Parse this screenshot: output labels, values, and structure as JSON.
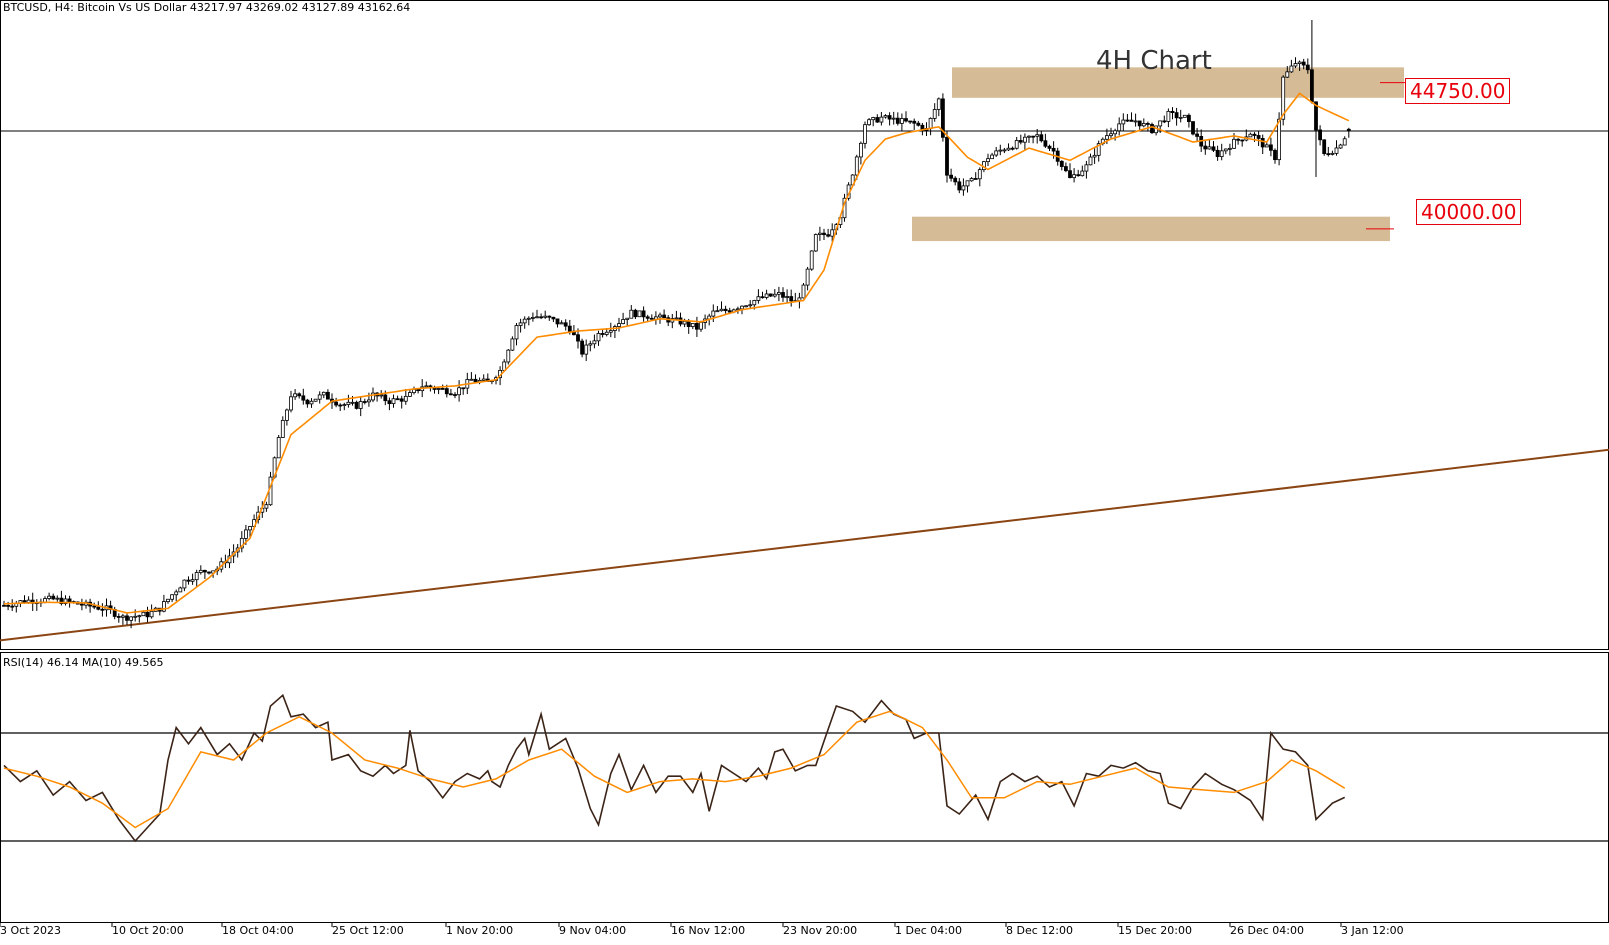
{
  "header": {
    "symbol_line": "BTCUSD, H4:  Bitcoin Vs US Dollar  43217.97 43269.02 43127.89 43162.64",
    "rsi_line": "RSI(14) 46.14 MA(10) 49.565"
  },
  "annotations": {
    "title": "4H Chart",
    "resistance_label": "44750.00",
    "support_label": "40000.00"
  },
  "colors": {
    "candle": "#000000",
    "ema": "#ff8c00",
    "trendline": "#8b4513",
    "zone": "#d2b48c",
    "level_label": "#e8000b",
    "rsi_line": "#3b2417",
    "rsi_ma": "#ff8c00"
  },
  "chart_data": [
    {
      "type": "candlestick",
      "symbol": "BTCUSD",
      "timeframe": "H4",
      "x_tick_labels": [
        "3 Oct 2023",
        "10 Oct 20:00",
        "18 Oct 04:00",
        "25 Oct 12:00",
        "1 Nov 20:00",
        "9 Nov 04:00",
        "16 Nov 12:00",
        "23 Nov 20:00",
        "1 Dec 04:00",
        "8 Dec 12:00",
        "15 Dec 20:00",
        "26 Dec 04:00",
        "3 Jan 12:00"
      ],
      "ylim": [
        26200,
        47000
      ],
      "current_price": 43162.64,
      "last_bar": {
        "open": 43217.97,
        "high": 43269.02,
        "low": 43127.89,
        "close": 43162.64
      },
      "price_path": [
        [
          0,
          27600
        ],
        [
          5,
          27750
        ],
        [
          12,
          27800
        ],
        [
          18,
          27650
        ],
        [
          25,
          27480
        ],
        [
          29,
          27200
        ],
        [
          35,
          27300
        ],
        [
          38,
          27500
        ],
        [
          44,
          28400
        ],
        [
          48,
          28700
        ],
        [
          52,
          28800
        ],
        [
          57,
          29500
        ],
        [
          60,
          30200
        ],
        [
          64,
          31000
        ],
        [
          67,
          33100
        ],
        [
          70,
          34500
        ],
        [
          74,
          34300
        ],
        [
          78,
          34500
        ],
        [
          82,
          34200
        ],
        [
          86,
          34150
        ],
        [
          90,
          34500
        ],
        [
          94,
          34300
        ],
        [
          98,
          34400
        ],
        [
          102,
          34800
        ],
        [
          106,
          34700
        ],
        [
          110,
          34600
        ],
        [
          114,
          35000
        ],
        [
          118,
          34900
        ],
        [
          121,
          35300
        ],
        [
          125,
          36800
        ],
        [
          129,
          37100
        ],
        [
          133,
          37000
        ],
        [
          138,
          36700
        ],
        [
          141,
          35900
        ],
        [
          145,
          36500
        ],
        [
          149,
          36800
        ],
        [
          153,
          37200
        ],
        [
          157,
          37100
        ],
        [
          161,
          37000
        ],
        [
          165,
          36900
        ],
        [
          169,
          36700
        ],
        [
          173,
          37200
        ],
        [
          177,
          37300
        ],
        [
          181,
          37500
        ],
        [
          185,
          37700
        ],
        [
          189,
          37800
        ],
        [
          193,
          37550
        ],
        [
          195,
          38000
        ],
        [
          198,
          39700
        ],
        [
          201,
          39800
        ],
        [
          204,
          40400
        ],
        [
          207,
          41800
        ],
        [
          210,
          43400
        ],
        [
          214,
          43600
        ],
        [
          218,
          43500
        ],
        [
          222,
          43400
        ],
        [
          225,
          43200
        ],
        [
          228,
          44200
        ],
        [
          230,
          41800
        ],
        [
          233,
          41300
        ],
        [
          236,
          41500
        ],
        [
          240,
          42300
        ],
        [
          244,
          42600
        ],
        [
          248,
          42800
        ],
        [
          252,
          43000
        ],
        [
          256,
          42500
        ],
        [
          260,
          41600
        ],
        [
          264,
          42000
        ],
        [
          268,
          42900
        ],
        [
          272,
          43400
        ],
        [
          276,
          43500
        ],
        [
          280,
          43200
        ],
        [
          284,
          43700
        ],
        [
          288,
          43600
        ],
        [
          292,
          42700
        ],
        [
          296,
          42400
        ],
        [
          300,
          42800
        ],
        [
          304,
          43100
        ],
        [
          308,
          42600
        ],
        [
          310,
          42300
        ],
        [
          312,
          44900
        ],
        [
          315,
          45400
        ],
        [
          318,
          45200
        ],
        [
          320,
          43200
        ],
        [
          322,
          42400
        ],
        [
          325,
          42600
        ],
        [
          328,
          43162
        ]
      ],
      "ema_path": [
        [
          0,
          27650
        ],
        [
          10,
          27700
        ],
        [
          20,
          27680
        ],
        [
          30,
          27350
        ],
        [
          40,
          27500
        ],
        [
          50,
          28500
        ],
        [
          60,
          29800
        ],
        [
          70,
          33200
        ],
        [
          80,
          34300
        ],
        [
          90,
          34500
        ],
        [
          100,
          34700
        ],
        [
          110,
          34800
        ],
        [
          120,
          35000
        ],
        [
          130,
          36400
        ],
        [
          140,
          36600
        ],
        [
          150,
          36700
        ],
        [
          160,
          37000
        ],
        [
          170,
          36900
        ],
        [
          180,
          37300
        ],
        [
          190,
          37500
        ],
        [
          195,
          37600
        ],
        [
          200,
          38600
        ],
        [
          205,
          40800
        ],
        [
          210,
          42200
        ],
        [
          215,
          42900
        ],
        [
          220,
          43100
        ],
        [
          228,
          43300
        ],
        [
          235,
          42300
        ],
        [
          240,
          41900
        ],
        [
          250,
          42600
        ],
        [
          260,
          42200
        ],
        [
          270,
          42900
        ],
        [
          280,
          43300
        ],
        [
          290,
          42800
        ],
        [
          300,
          43000
        ],
        [
          308,
          42800
        ],
        [
          312,
          43700
        ],
        [
          316,
          44400
        ],
        [
          320,
          44000
        ],
        [
          328,
          43500
        ]
      ],
      "trendline": [
        [
          0,
          26450
        ],
        [
          360,
          32200
        ]
      ],
      "zones": [
        {
          "label": "44750.00",
          "low": 44250,
          "high": 45250
        },
        {
          "label": "40000.00",
          "low": 39550,
          "high": 40350
        }
      ],
      "horizontal_line": 43162.64,
      "title": "4H Chart"
    },
    {
      "type": "line",
      "title": "RSI(14) 46.14 MA(10) 49.565",
      "ylim": [
        0,
        100
      ],
      "levels": [
        70,
        30
      ],
      "series": [
        {
          "name": "RSI(14)",
          "points": [
            [
              0,
              58
            ],
            [
              4,
              52
            ],
            [
              8,
              56
            ],
            [
              12,
              47
            ],
            [
              16,
              52
            ],
            [
              20,
              45
            ],
            [
              24,
              48
            ],
            [
              28,
              38
            ],
            [
              32,
              30
            ],
            [
              35,
              35
            ],
            [
              38,
              40
            ],
            [
              40,
              60
            ],
            [
              42,
              72
            ],
            [
              45,
              66
            ],
            [
              48,
              72
            ],
            [
              52,
              62
            ],
            [
              55,
              66
            ],
            [
              58,
              60
            ],
            [
              61,
              70
            ],
            [
              63,
              67
            ],
            [
              65,
              80
            ],
            [
              68,
              84
            ],
            [
              70,
              76
            ],
            [
              73,
              77
            ],
            [
              76,
              72
            ],
            [
              79,
              74
            ],
            [
              80,
              60
            ],
            [
              84,
              62
            ],
            [
              87,
              56
            ],
            [
              90,
              54
            ],
            [
              93,
              58
            ],
            [
              95,
              55
            ],
            [
              98,
              58
            ],
            [
              99,
              71
            ],
            [
              101,
              56
            ],
            [
              104,
              52
            ],
            [
              107,
              46
            ],
            [
              110,
              52
            ],
            [
              113,
              55
            ],
            [
              116,
              53
            ],
            [
              118,
              56
            ],
            [
              119,
              52
            ],
            [
              121,
              50
            ],
            [
              123,
              58
            ],
            [
              125,
              64
            ],
            [
              127,
              68
            ],
            [
              128,
              62
            ],
            [
              131,
              77
            ],
            [
              133,
              64
            ],
            [
              137,
              68
            ],
            [
              140,
              57
            ],
            [
              143,
              42
            ],
            [
              145,
              36
            ],
            [
              148,
              55
            ],
            [
              150,
              62
            ],
            [
              153,
              49
            ],
            [
              156,
              58
            ],
            [
              159,
              48
            ],
            [
              162,
              54
            ],
            [
              165,
              54
            ],
            [
              168,
              48
            ],
            [
              170,
              55
            ],
            [
              172,
              41
            ],
            [
              175,
              58
            ],
            [
              178,
              55
            ],
            [
              181,
              52
            ],
            [
              184,
              57
            ],
            [
              186,
              53
            ],
            [
              188,
              63
            ],
            [
              190,
              64
            ],
            [
              193,
              56
            ],
            [
              196,
              58
            ],
            [
              198,
              58
            ],
            [
              200,
              67
            ],
            [
              203,
              80
            ],
            [
              207,
              78
            ],
            [
              210,
              74
            ],
            [
              214,
              82
            ],
            [
              217,
              77
            ],
            [
              220,
              75
            ],
            [
              222,
              68
            ],
            [
              225,
              70
            ],
            [
              228,
              70
            ],
            [
              230,
              43
            ],
            [
              233,
              40
            ],
            [
              237,
              47
            ],
            [
              240,
              38
            ],
            [
              243,
              52
            ],
            [
              246,
              55
            ],
            [
              249,
              52
            ],
            [
              252,
              54
            ],
            [
              255,
              50
            ],
            [
              258,
              52
            ],
            [
              261,
              43
            ],
            [
              264,
              55
            ],
            [
              267,
              54
            ],
            [
              270,
              58
            ],
            [
              273,
              57
            ],
            [
              276,
              59
            ],
            [
              279,
              56
            ],
            [
              282,
              55
            ],
            [
              284,
              44
            ],
            [
              287,
              42
            ],
            [
              290,
              50
            ],
            [
              293,
              55
            ],
            [
              297,
              51
            ],
            [
              300,
              49
            ],
            [
              304,
              45
            ],
            [
              307,
              38
            ],
            [
              309,
              70
            ],
            [
              312,
              64
            ],
            [
              315,
              63
            ],
            [
              318,
              58
            ],
            [
              320,
              38
            ],
            [
              324,
              44
            ],
            [
              327,
              46.14
            ]
          ]
        },
        {
          "name": "MA(10)",
          "points": [
            [
              0,
              57
            ],
            [
              8,
              54
            ],
            [
              16,
              50
            ],
            [
              24,
              44
            ],
            [
              32,
              35
            ],
            [
              40,
              42
            ],
            [
              48,
              63
            ],
            [
              56,
              60
            ],
            [
              64,
              70
            ],
            [
              72,
              76
            ],
            [
              80,
              70
            ],
            [
              88,
              60
            ],
            [
              96,
              57
            ],
            [
              104,
              53
            ],
            [
              112,
              50
            ],
            [
              120,
              53
            ],
            [
              128,
              60
            ],
            [
              136,
              64
            ],
            [
              144,
              54
            ],
            [
              152,
              48
            ],
            [
              160,
              52
            ],
            [
              168,
              53
            ],
            [
              176,
              52
            ],
            [
              184,
              54
            ],
            [
              192,
              57
            ],
            [
              200,
              62
            ],
            [
              208,
              74
            ],
            [
              216,
              78
            ],
            [
              224,
              72
            ],
            [
              230,
              60
            ],
            [
              236,
              46
            ],
            [
              244,
              46
            ],
            [
              252,
              52
            ],
            [
              260,
              51
            ],
            [
              268,
              54
            ],
            [
              276,
              57
            ],
            [
              284,
              50
            ],
            [
              292,
              49
            ],
            [
              300,
              48
            ],
            [
              308,
              52
            ],
            [
              314,
              60
            ],
            [
              320,
              56
            ],
            [
              327,
              49.565
            ]
          ]
        }
      ]
    }
  ]
}
